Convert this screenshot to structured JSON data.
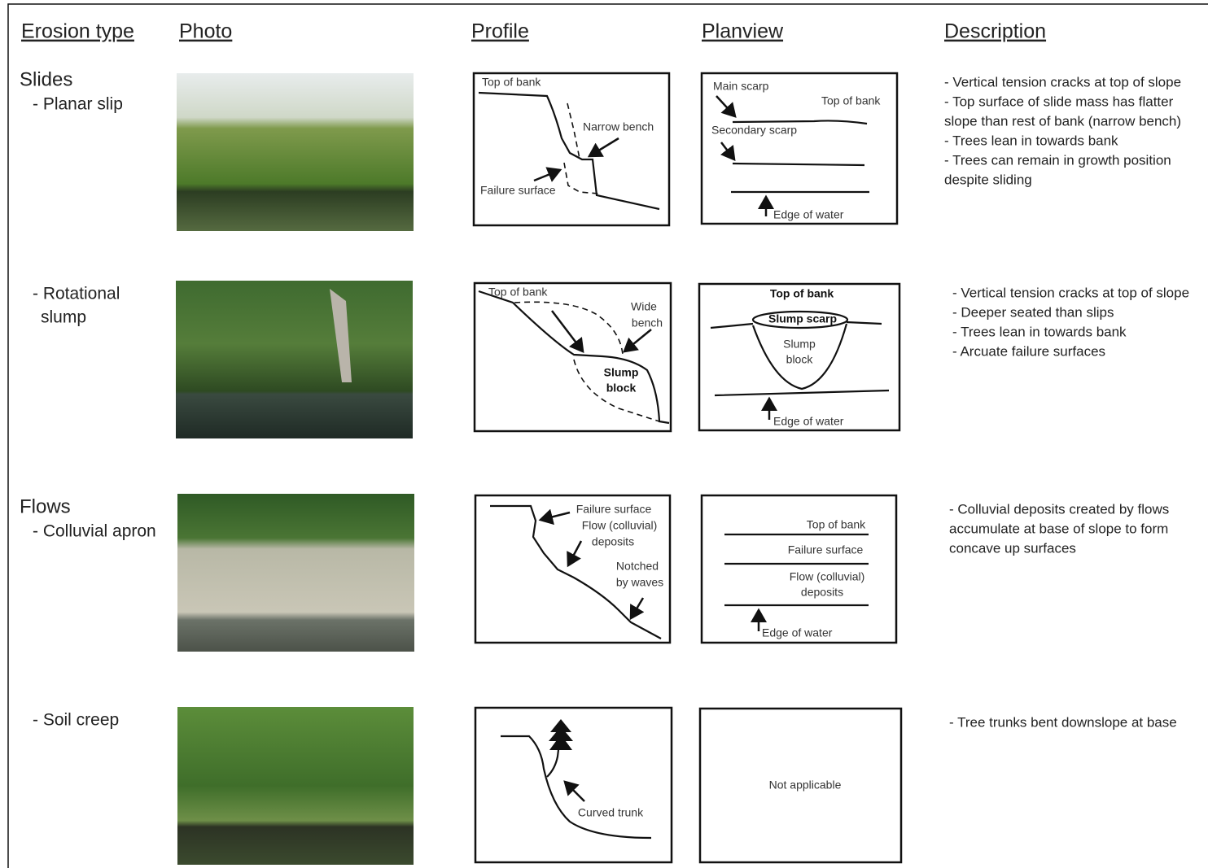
{
  "headers": [
    "Erosion type",
    "Photo",
    "Profile",
    "Planview",
    "Description"
  ],
  "rows": [
    {
      "group": "Slides",
      "type": [
        "- Planar slip"
      ],
      "profile_labels": [
        "Top of bank",
        "Narrow bench",
        "Failure surface"
      ],
      "planview_labels": [
        "Main scarp",
        "Top of bank",
        "Secondary scarp",
        "Edge of water"
      ],
      "description": [
        "- Vertical tension cracks at top of slope",
        "- Top surface of slide mass has flatter",
        "slope than rest of bank (narrow bench)",
        "- Trees lean in towards bank",
        "- Trees can remain in growth position",
        "despite sliding"
      ]
    },
    {
      "type": [
        "- Rotational",
        "slump"
      ],
      "profile_labels": [
        "Top of bank",
        "Wide",
        "bench",
        "Slump",
        "block"
      ],
      "planview_labels": [
        "Top of bank",
        "Slump scarp",
        "Slump",
        "block",
        "Edge of water"
      ],
      "description": [
        "- Vertical tension cracks at top of slope",
        "- Deeper seated than slips",
        "- Trees lean in towards bank",
        "- Arcuate failure surfaces"
      ]
    },
    {
      "group": "Flows",
      "type": [
        "- Colluvial apron"
      ],
      "profile_labels": [
        "Failure surface",
        "Flow (colluvial)",
        "deposits",
        "Notched",
        "by waves"
      ],
      "planview_labels": [
        "Top of bank",
        "Failure surface",
        "Flow (colluvial)",
        "deposits",
        "Edge of water"
      ],
      "description": [
        "- Colluvial deposits created by flows",
        "accumulate at base of slope to form",
        "concave up surfaces"
      ]
    },
    {
      "type": [
        "- Soil creep"
      ],
      "profile_labels": [
        "Curved trunk"
      ],
      "planview_labels": [
        "Not applicable"
      ],
      "description": [
        "- Tree trunks bent downslope at base"
      ]
    }
  ]
}
